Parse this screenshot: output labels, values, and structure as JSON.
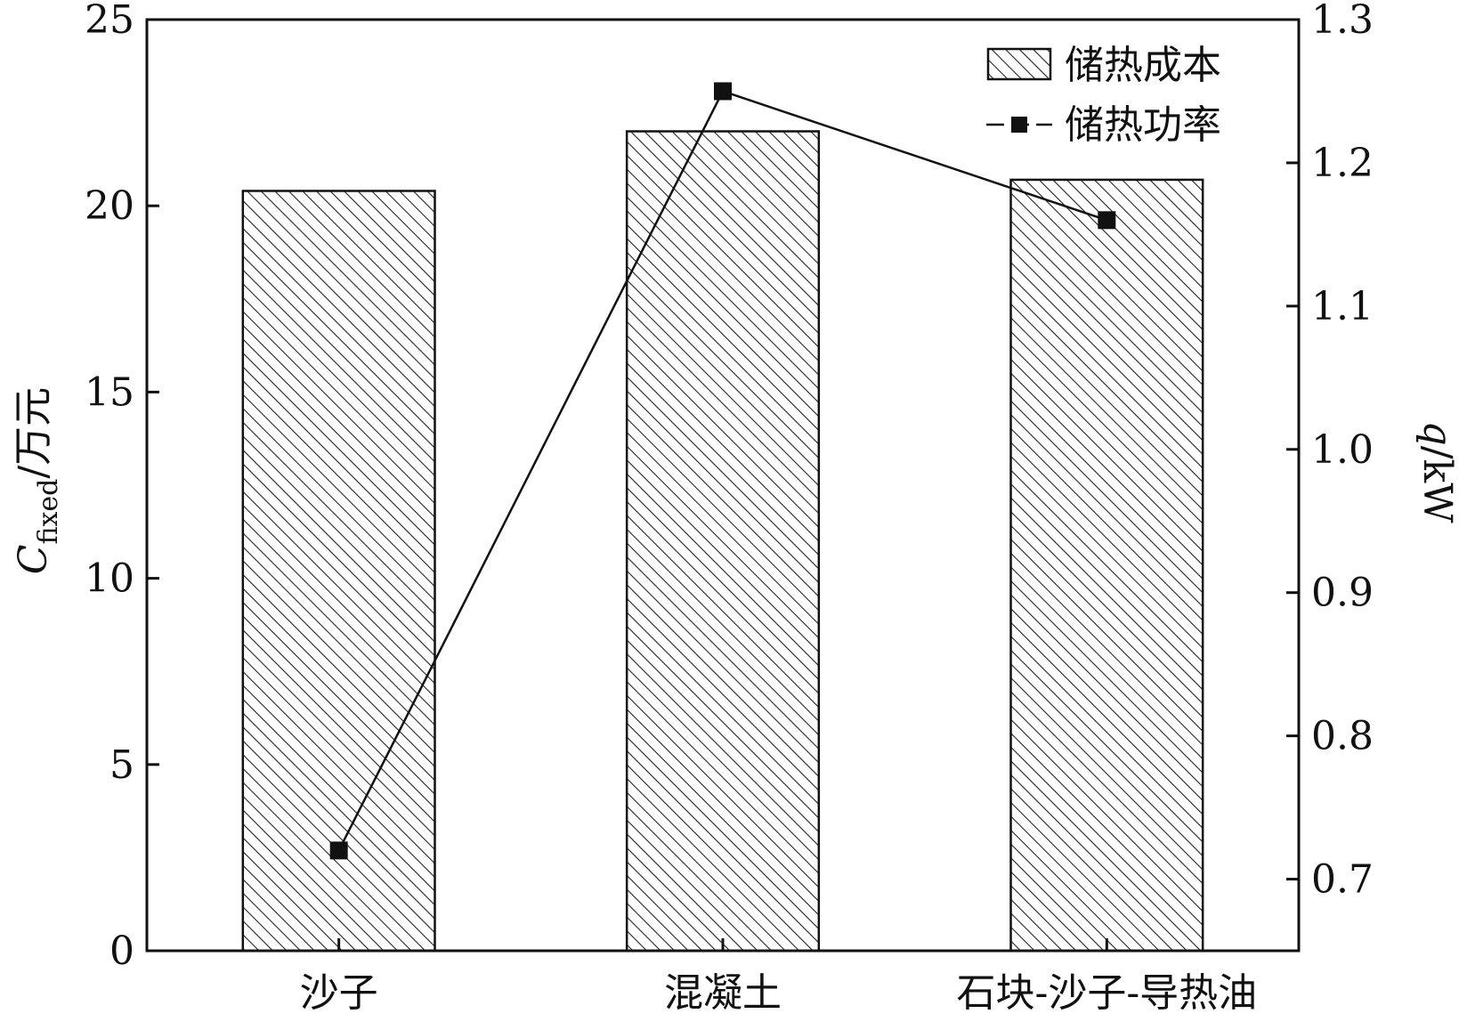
{
  "chart_data": {
    "type": "bar",
    "categories": [
      "沙子",
      "混凝土",
      "石块-沙子-导热油"
    ],
    "series": [
      {
        "name": "储热成本",
        "type": "bar",
        "axis": "left",
        "values": [
          20.4,
          22.0,
          20.7
        ]
      },
      {
        "name": "储热功率",
        "type": "line",
        "axis": "right",
        "values": [
          0.72,
          1.25,
          1.16
        ]
      }
    ],
    "left_axis": {
      "label_main": "C",
      "label_sub": "fixed",
      "label_unit": "/万元",
      "ylim": [
        0,
        25
      ],
      "ticks": [
        "0",
        "5",
        "10",
        "15",
        "20",
        "25"
      ]
    },
    "right_axis": {
      "label_main": "q",
      "label_unit": "/kW",
      "ylim": [
        0.65,
        1.3
      ],
      "ticks": [
        "0.7",
        "0.8",
        "0.9",
        "1.0",
        "1.1",
        "1.2",
        "1.3"
      ]
    },
    "legend": {
      "placement": "top-right"
    },
    "grid": false,
    "colors": {
      "bar_fill": "#ffffff",
      "hatch": "#222222",
      "line": "#111111",
      "marker": "#111111"
    }
  }
}
